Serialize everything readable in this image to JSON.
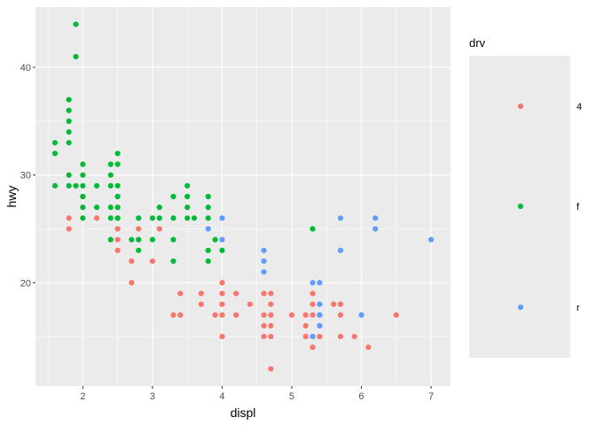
{
  "chart_data": {
    "type": "scatter",
    "title": "",
    "xlabel": "displ",
    "ylabel": "hwy",
    "xlim": [
      1.32,
      7.28
    ],
    "ylim": [
      10.4,
      45.6
    ],
    "x_ticks": [
      2,
      3,
      4,
      5,
      6,
      7
    ],
    "y_ticks": [
      20,
      30,
      40
    ],
    "grid": true,
    "legend": {
      "title": "drv",
      "placement": "right",
      "entries": [
        "4",
        "f",
        "r"
      ]
    },
    "colors": {
      "4": "#F8766D",
      "f": "#00BA38",
      "r": "#619CFF"
    },
    "series": [
      {
        "name": "4",
        "points": [
          [
            1.8,
            26
          ],
          [
            1.8,
            25
          ],
          [
            2.0,
            28
          ],
          [
            2.0,
            27
          ],
          [
            2.2,
            26
          ],
          [
            2.5,
            27
          ],
          [
            2.5,
            26
          ],
          [
            2.5,
            25
          ],
          [
            2.5,
            24
          ],
          [
            2.5,
            23
          ],
          [
            2.7,
            22
          ],
          [
            2.7,
            20
          ],
          [
            2.8,
            25
          ],
          [
            2.8,
            24
          ],
          [
            3.0,
            22
          ],
          [
            3.1,
            25
          ],
          [
            3.3,
            17
          ],
          [
            3.4,
            19
          ],
          [
            3.4,
            17
          ],
          [
            3.7,
            19
          ],
          [
            3.7,
            18
          ],
          [
            3.9,
            17
          ],
          [
            4.0,
            20
          ],
          [
            4.0,
            19
          ],
          [
            4.0,
            18
          ],
          [
            4.0,
            17
          ],
          [
            4.0,
            15
          ],
          [
            4.2,
            19
          ],
          [
            4.2,
            17
          ],
          [
            4.4,
            18
          ],
          [
            4.6,
            19
          ],
          [
            4.6,
            17
          ],
          [
            4.6,
            16
          ],
          [
            4.6,
            15
          ],
          [
            4.7,
            19
          ],
          [
            4.7,
            18
          ],
          [
            4.7,
            17
          ],
          [
            4.7,
            16
          ],
          [
            4.7,
            15
          ],
          [
            4.7,
            12
          ],
          [
            5.0,
            17
          ],
          [
            5.2,
            17
          ],
          [
            5.2,
            16
          ],
          [
            5.2,
            15
          ],
          [
            5.3,
            19
          ],
          [
            5.3,
            18
          ],
          [
            5.3,
            17
          ],
          [
            5.3,
            15
          ],
          [
            5.3,
            14
          ],
          [
            5.4,
            17
          ],
          [
            5.4,
            16
          ],
          [
            5.4,
            15
          ],
          [
            5.6,
            18
          ],
          [
            5.7,
            18
          ],
          [
            5.7,
            17
          ],
          [
            5.7,
            15
          ],
          [
            5.9,
            15
          ],
          [
            6.1,
            14
          ],
          [
            6.5,
            17
          ]
        ]
      },
      {
        "name": "f",
        "points": [
          [
            1.6,
            33
          ],
          [
            1.6,
            32
          ],
          [
            1.6,
            29
          ],
          [
            1.8,
            37
          ],
          [
            1.8,
            36
          ],
          [
            1.8,
            35
          ],
          [
            1.8,
            34
          ],
          [
            1.8,
            33
          ],
          [
            1.8,
            30
          ],
          [
            1.8,
            29
          ],
          [
            1.9,
            44
          ],
          [
            1.9,
            41
          ],
          [
            1.9,
            29
          ],
          [
            2.0,
            31
          ],
          [
            2.0,
            30
          ],
          [
            2.0,
            29
          ],
          [
            2.0,
            28
          ],
          [
            2.0,
            27
          ],
          [
            2.0,
            26
          ],
          [
            2.2,
            29
          ],
          [
            2.2,
            27
          ],
          [
            2.4,
            31
          ],
          [
            2.4,
            30
          ],
          [
            2.4,
            29
          ],
          [
            2.4,
            27
          ],
          [
            2.4,
            26
          ],
          [
            2.4,
            24
          ],
          [
            2.5,
            32
          ],
          [
            2.5,
            31
          ],
          [
            2.5,
            29
          ],
          [
            2.5,
            28
          ],
          [
            2.5,
            27
          ],
          [
            2.5,
            26
          ],
          [
            2.7,
            24
          ],
          [
            2.8,
            26
          ],
          [
            2.8,
            24
          ],
          [
            2.8,
            23
          ],
          [
            3.0,
            26
          ],
          [
            3.0,
            24
          ],
          [
            3.1,
            27
          ],
          [
            3.1,
            26
          ],
          [
            3.3,
            28
          ],
          [
            3.3,
            26
          ],
          [
            3.3,
            24
          ],
          [
            3.3,
            22
          ],
          [
            3.5,
            29
          ],
          [
            3.5,
            28
          ],
          [
            3.5,
            27
          ],
          [
            3.5,
            26
          ],
          [
            3.6,
            26
          ],
          [
            3.8,
            28
          ],
          [
            3.8,
            27
          ],
          [
            3.8,
            26
          ],
          [
            3.8,
            23
          ],
          [
            3.8,
            22
          ],
          [
            3.9,
            24
          ],
          [
            4.0,
            23
          ],
          [
            5.3,
            25
          ]
        ]
      },
      {
        "name": "r",
        "points": [
          [
            3.8,
            25
          ],
          [
            4.0,
            26
          ],
          [
            4.0,
            24
          ],
          [
            4.6,
            23
          ],
          [
            4.6,
            22
          ],
          [
            4.6,
            21
          ],
          [
            5.3,
            20
          ],
          [
            5.3,
            15
          ],
          [
            5.4,
            20
          ],
          [
            5.4,
            18
          ],
          [
            5.4,
            17
          ],
          [
            5.4,
            16
          ],
          [
            5.7,
            26
          ],
          [
            5.7,
            23
          ],
          [
            6.0,
            17
          ],
          [
            6.2,
            26
          ],
          [
            6.2,
            25
          ],
          [
            7.0,
            24
          ]
        ]
      }
    ]
  }
}
